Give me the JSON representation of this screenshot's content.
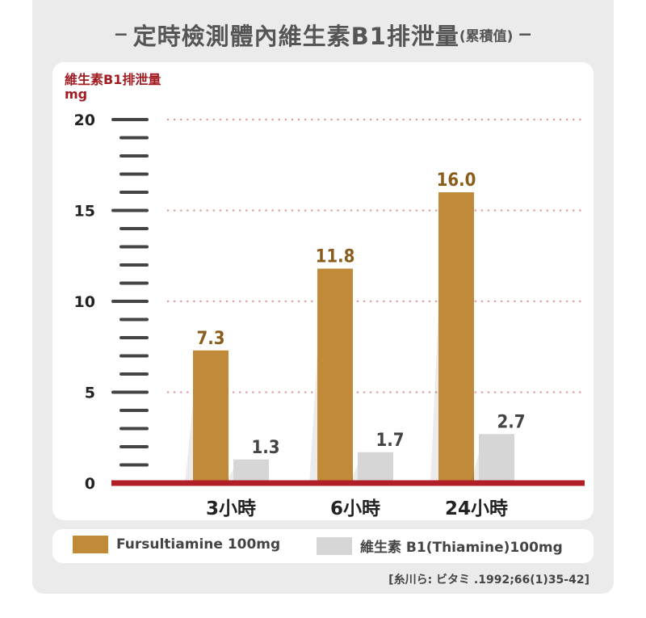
{
  "title": {
    "dash": "−",
    "main": "定時檢測體內維生素B1排泄量",
    "sub": "(累積值)"
  },
  "colors": {
    "fursultiamine": "#c08a38",
    "thiamine": "#d6d6d6",
    "value_gold": "#8a5d1c",
    "value_gray": "#444444",
    "axis_red": "#b01e26",
    "grid_dots": "#e0a0a0"
  },
  "chart_data": {
    "type": "bar",
    "ylabel": "維生素B1排泄量",
    "yunit": "mg",
    "ylim": [
      0,
      20
    ],
    "yticks": [
      "0",
      "5",
      "10",
      "15",
      "20"
    ],
    "categories": [
      "3小時",
      "6小時",
      "24小時"
    ],
    "series": [
      {
        "name": "Fursultiamine 100mg",
        "values": [
          7.3,
          11.8,
          16.0
        ],
        "labels": [
          "7.3",
          "11.8",
          "16.0"
        ]
      },
      {
        "name": "維生素 B1(Thiamine)100mg",
        "values": [
          1.3,
          1.7,
          2.7
        ],
        "labels": [
          "1.3",
          "1.7",
          "2.7"
        ]
      }
    ],
    "grid": true
  },
  "source": "[糸川ら: ビタミ .1992;66(1)35-42]"
}
